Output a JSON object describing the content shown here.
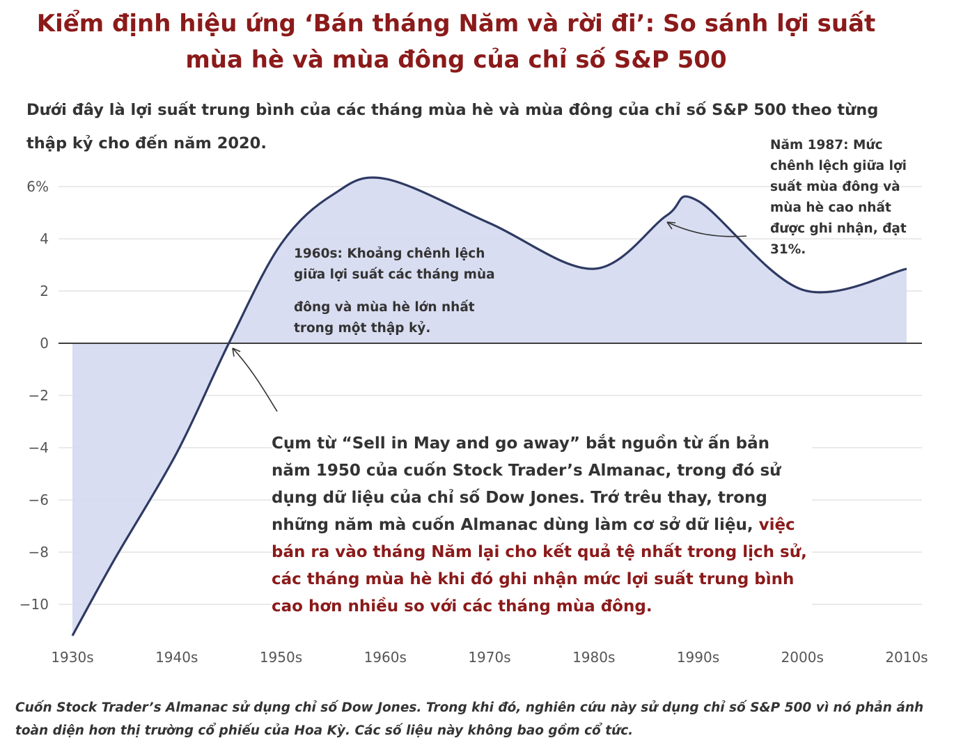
{
  "title_line1": "Kiểm định hiệu ứng ‘Bán tháng Năm và rời đi’: So sánh lợi suất",
  "title_line2": "mùa hè và mùa đông của chỉ số S&P 500",
  "subtitle": "Dưới đây là lợi suất trung bình của các tháng mùa hè và mùa đông của chỉ số S&P 500 theo từng thập kỷ cho đến năm 2020.",
  "annotations": {
    "a1987": "Năm 1987: Mức chênh lệch giữa lợi suất mùa đông và mùa hè cao nhất được ghi nhận, đạt 31%.",
    "a1960_line1": "1960s: Khoảng chênh lệch giữa lợi suất các tháng mùa",
    "a1960_line2": "đông và mùa hè lớn nhất trong một thập kỷ.",
    "main_plain": "Cụm từ “Sell in May and go away” bắt nguồn từ ấn bản năm 1950 của cuốn Stock Trader’s Almanac, trong đó sử dụng dữ liệu của chỉ số Dow Jones. Trớ trêu thay, trong những năm mà cuốn Almanac dùng làm cơ sở dữ liệu,",
    "main_highlight": "việc bán ra vào tháng Năm lại cho kết quả tệ nhất trong lịch sử, các  tháng mùa hè khi đó ghi nhận mức lợi suất trung bình cao hơn nhiều so với các tháng mùa đông."
  },
  "footnote": "Cuốn Stock Trader’s Almanac sử dụng chỉ số Dow Jones. Trong khi đó, nghiên cứu này sử dụng chỉ số S&P 500 vì nó phản ánh toàn diện hơn thị trường cổ phiếu của Hoa Kỳ. Các số liệu này không bao gồm cổ tức.",
  "colors": {
    "title": "#8b1a1a",
    "line": "#2e3a63",
    "fill": "#d5d9f0",
    "grid": "#e4e4e4",
    "zero_line": "#222222",
    "highlight_text": "#8b1a1a"
  },
  "chart_data": {
    "type": "area",
    "categories": [
      "1930s",
      "1940s",
      "1950s",
      "1960s",
      "1970s",
      "1980s",
      "1990s",
      "2000s",
      "2010s"
    ],
    "x": [
      1930,
      1940,
      1950,
      1960,
      1970,
      1980,
      1990,
      2000,
      2010
    ],
    "y_ticks": [
      6,
      4,
      2,
      0,
      -2,
      -4,
      -6,
      -8,
      -10
    ],
    "y_tick_labels": [
      "6%",
      "4",
      "2",
      "0",
      "−2",
      "−4",
      "−6",
      "−8",
      "−10"
    ],
    "curve": [
      {
        "x": 1930,
        "y": -11.2
      },
      {
        "x": 1934,
        "y": -8.3
      },
      {
        "x": 1940,
        "y": -4.2
      },
      {
        "x": 1945,
        "y": 0.0
      },
      {
        "x": 1950,
        "y": 3.8
      },
      {
        "x": 1955,
        "y": 5.7
      },
      {
        "x": 1960,
        "y": 6.3
      },
      {
        "x": 1970,
        "y": 4.6
      },
      {
        "x": 1980,
        "y": 2.85
      },
      {
        "x": 1987,
        "y": 4.9
      },
      {
        "x": 1990,
        "y": 5.45
      },
      {
        "x": 2000,
        "y": 2.05
      },
      {
        "x": 2010,
        "y": 2.85
      }
    ],
    "ylim": [
      -11.5,
      6.8
    ],
    "xlim": [
      1930,
      2010
    ],
    "grid": true,
    "legend": "none"
  }
}
